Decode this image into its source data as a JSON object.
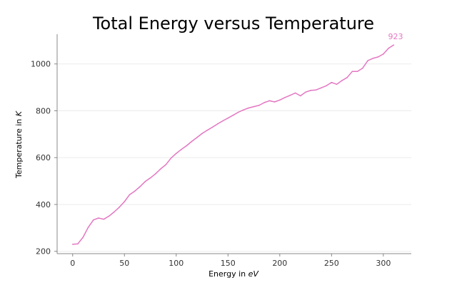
{
  "chart_data": {
    "type": "line",
    "title": "Total Energy versus Temperature",
    "xlabel": "Energy in ",
    "xlabel_unit": "eV",
    "ylabel": "Temperature in ",
    "ylabel_unit": "K",
    "xlim": [
      -15,
      327
    ],
    "ylim": [
      190,
      1127
    ],
    "xticks": [
      0,
      50,
      100,
      150,
      200,
      250,
      300
    ],
    "yticks": [
      200,
      400,
      600,
      800,
      1000
    ],
    "grid": "horizontal",
    "series": [
      {
        "color": "#e377c2",
        "x": [
          0,
          5,
          10,
          15,
          20,
          25,
          30,
          35,
          40,
          45,
          50,
          55,
          60,
          65,
          70,
          75,
          80,
          85,
          90,
          95,
          100,
          105,
          110,
          115,
          120,
          125,
          130,
          135,
          140,
          145,
          150,
          155,
          160,
          165,
          170,
          175,
          180,
          185,
          190,
          195,
          200,
          205,
          210,
          215,
          220,
          225,
          230,
          235,
          240,
          245,
          250,
          255,
          260,
          265,
          270,
          275,
          280,
          285,
          290,
          295,
          300,
          305,
          310
        ],
        "y": [
          230,
          232,
          260,
          302,
          334,
          342,
          337,
          350,
          368,
          388,
          412,
          442,
          457,
          476,
          498,
          513,
          531,
          552,
          570,
          598,
          618,
          635,
          651,
          669,
          686,
          703,
          717,
          730,
          744,
          757,
          769,
          781,
          794,
          804,
          812,
          818,
          823,
          835,
          843,
          838,
          846,
          857,
          866,
          876,
          864,
          880,
          887,
          889,
          898,
          907,
          921,
          913,
          929,
          942,
          968,
          968,
          982,
          1014,
          1024,
          1030,
          1042,
          1067,
          1081
        ]
      }
    ],
    "annotation": {
      "text": "923"
    }
  }
}
